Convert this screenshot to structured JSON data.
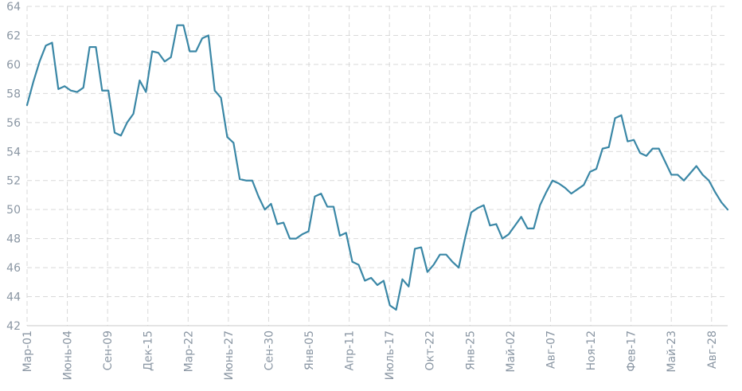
{
  "chart_data": {
    "type": "line",
    "title": "",
    "xlabel": "",
    "ylabel": "",
    "ylim": [
      42,
      64
    ],
    "yticks": [
      42,
      44,
      46,
      48,
      50,
      52,
      54,
      56,
      58,
      60,
      62,
      64
    ],
    "grid": true,
    "xtick_labels": [
      "Мар-01",
      "Июнь-04",
      "Сен-09",
      "Дек-15",
      "Мар-22",
      "Июнь-27",
      "Сен-30",
      "Янв-05",
      "Апр-11",
      "Июль-17",
      "Окт-22",
      "Янв-25",
      "Май-02",
      "Авг-07",
      "Ноя-12",
      "Фев-17",
      "Май-23",
      "Авг-28"
    ],
    "series": [
      {
        "color": "#3a87a6",
        "values": [
          57.2,
          58.8,
          60.2,
          61.3,
          61.5,
          58.3,
          58.5,
          58.2,
          58.1,
          58.4,
          61.2,
          61.2,
          58.2,
          58.2,
          55.3,
          55.1,
          56.0,
          56.6,
          58.9,
          58.1,
          60.9,
          60.8,
          60.2,
          60.5,
          62.7,
          62.7,
          60.9,
          60.9,
          61.8,
          62.0,
          58.2,
          57.7,
          55.0,
          54.6,
          52.1,
          52.0,
          52.0,
          50.9,
          50.0,
          50.4,
          49.0,
          49.1,
          48.0,
          48.0,
          48.3,
          48.5,
          50.9,
          51.1,
          50.2,
          50.2,
          48.2,
          48.4,
          46.4,
          46.2,
          45.1,
          45.3,
          44.8,
          45.1,
          43.4,
          43.1,
          45.2,
          44.7,
          47.3,
          47.4,
          45.7,
          46.2,
          46.9,
          46.9,
          46.4,
          46.0,
          48.0,
          49.8,
          50.1,
          50.3,
          48.9,
          49.0,
          48.0,
          48.3,
          48.9,
          49.5,
          48.7,
          48.7,
          50.3,
          51.2,
          52.0,
          51.8,
          51.5,
          51.1,
          51.4,
          51.7,
          52.6,
          52.8,
          54.2,
          54.3,
          56.3,
          56.5,
          54.7,
          54.8,
          53.9,
          53.7,
          54.2,
          54.2,
          53.3,
          52.4,
          52.4,
          52.0,
          52.5,
          53.0,
          52.4,
          52.0,
          51.2,
          50.5,
          50.0
        ]
      }
    ]
  }
}
